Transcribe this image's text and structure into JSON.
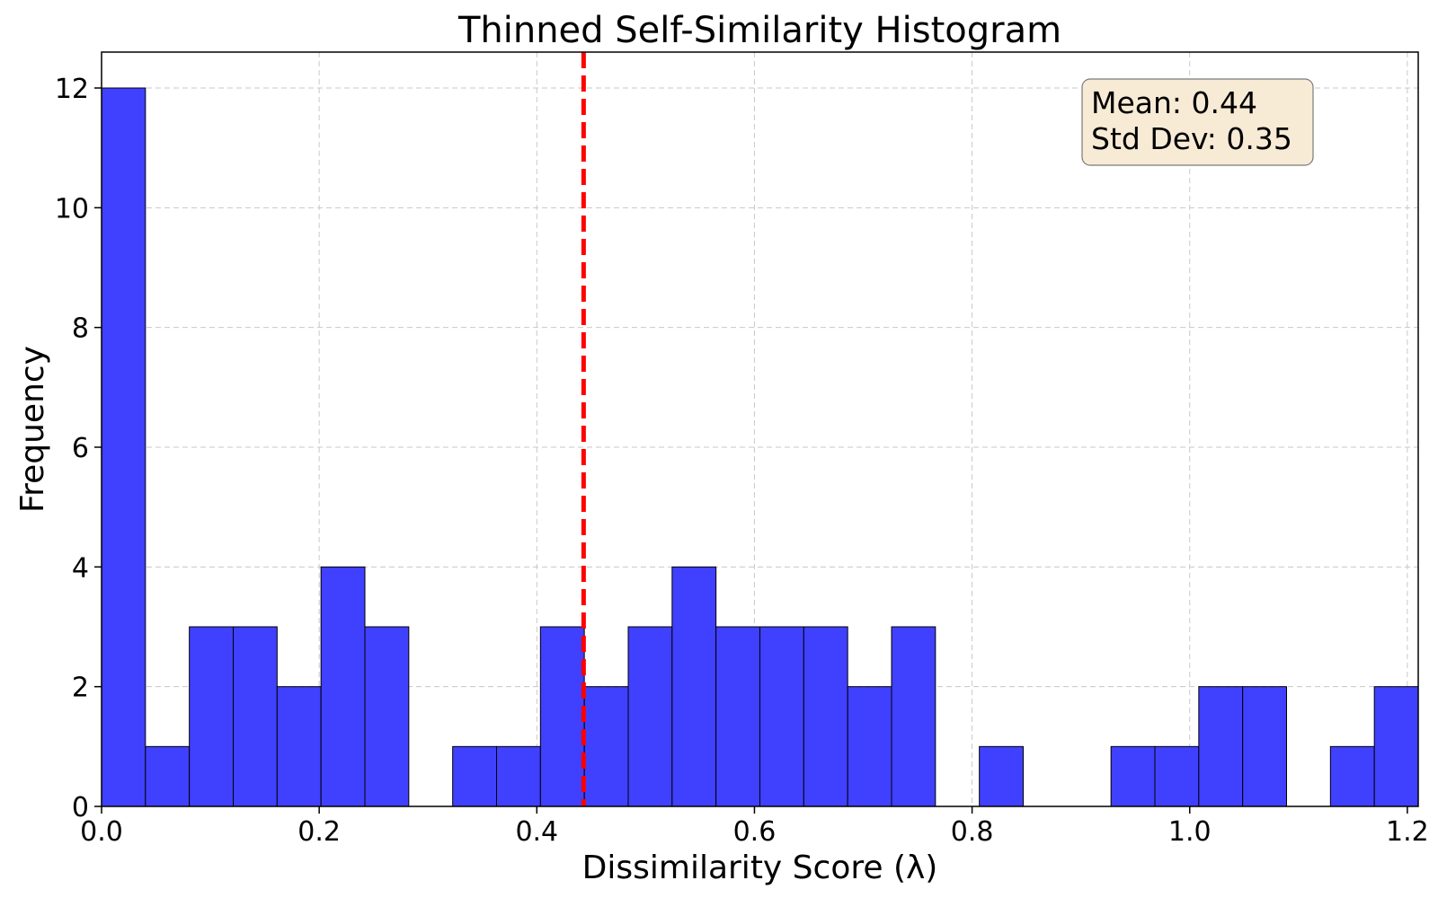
{
  "chart_data": {
    "type": "bar",
    "title": "Thinned Self-Similarity Histogram",
    "xlabel": "Dissimilarity Score (λ)",
    "ylabel": "Frequency",
    "xlim": [
      0.0,
      1.21
    ],
    "ylim": [
      0,
      12.6
    ],
    "bin_width": 0.04033,
    "bin_starts": [
      0.0,
      0.04033,
      0.08067,
      0.121,
      0.16133,
      0.20167,
      0.242,
      0.28233,
      0.32267,
      0.363,
      0.40333,
      0.44367,
      0.484,
      0.52433,
      0.56467,
      0.605,
      0.64533,
      0.68567,
      0.726,
      0.76633,
      0.80667,
      0.847,
      0.88733,
      0.92767,
      0.968,
      1.00833,
      1.04867,
      1.089,
      1.12933,
      1.16967
    ],
    "counts": [
      12,
      1,
      3,
      3,
      2,
      4,
      3,
      0,
      1,
      1,
      3,
      2,
      3,
      4,
      3,
      3,
      3,
      2,
      3,
      0,
      1,
      0,
      0,
      1,
      1,
      2,
      2,
      0,
      1,
      2
    ],
    "bar_color": "#4040ff",
    "bar_edge_color": "#000000",
    "xticks": [
      0.0,
      0.2,
      0.4,
      0.6,
      0.8,
      1.0,
      1.2
    ],
    "xtick_labels": [
      "0.0",
      "0.2",
      "0.4",
      "0.6",
      "0.8",
      "1.0",
      "1.2"
    ],
    "yticks": [
      0,
      2,
      4,
      6,
      8,
      10,
      12
    ],
    "ytick_labels": [
      "0",
      "2",
      "4",
      "6",
      "8",
      "10",
      "12"
    ],
    "grid": true,
    "mean_line": {
      "x": 0.443,
      "color": "#ff0000",
      "style": "dashed"
    },
    "stats_box": {
      "mean_text": "Mean: 0.44",
      "std_text": "Std Dev: 0.35",
      "position": "top-right",
      "background": "#f7ebd6"
    }
  }
}
